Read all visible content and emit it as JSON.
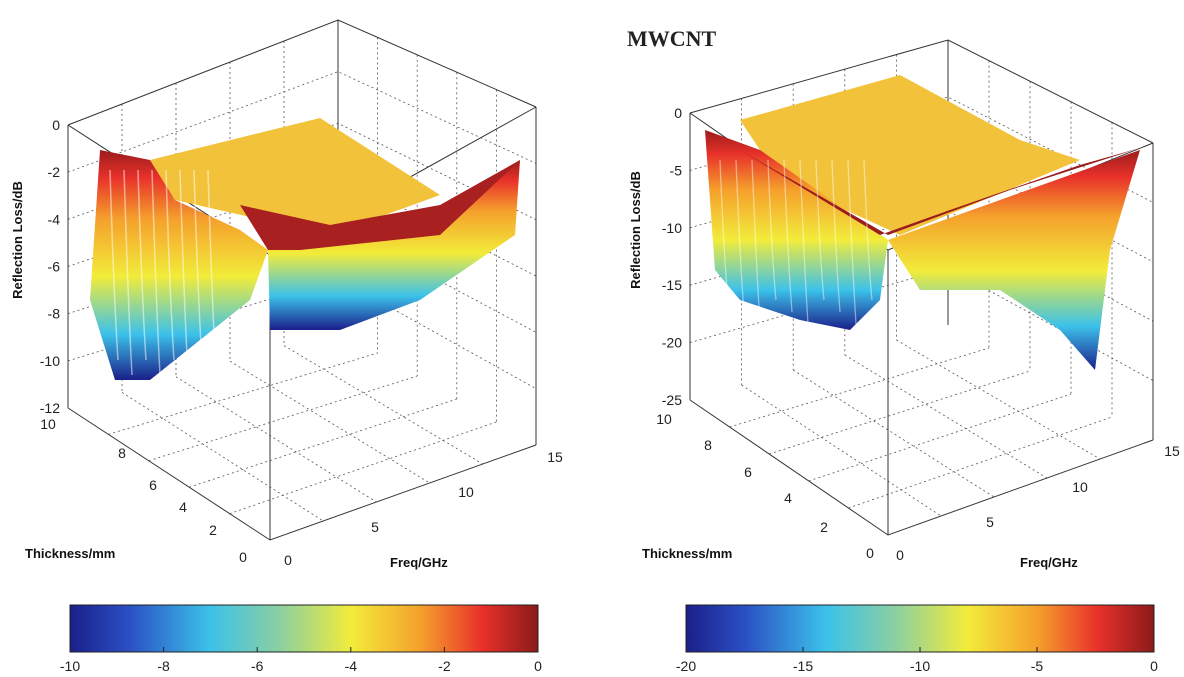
{
  "figure": {
    "right_panel_title": "MWCNT"
  },
  "chart_data": [
    {
      "type": "surface",
      "title": "",
      "zlabel": "Reflection Loss/dB",
      "xlabel": "Thickness/mm",
      "ylabel": "Freq/GHz",
      "zlim": [
        -12,
        0
      ],
      "z_ticks": [
        "0",
        "-2",
        "-4",
        "-6",
        "-8",
        "-10",
        "-12"
      ],
      "thickness_ticks": [
        "10",
        "8",
        "6",
        "4",
        "2",
        "0"
      ],
      "freq_ticks": [
        "0",
        "5",
        "10",
        "15"
      ],
      "colorbar": {
        "min": -10,
        "max": 0,
        "ticks": [
          "-10",
          "-8",
          "-6",
          "-4",
          "-2",
          "0"
        ]
      },
      "grid": true
    },
    {
      "type": "surface",
      "title": "MWCNT",
      "zlabel": "Reflection Loss/dB",
      "xlabel": "Thickness/mm",
      "ylabel": "Freq/GHz",
      "zlim": [
        -25,
        0
      ],
      "z_ticks": [
        "0",
        "-5",
        "-10",
        "-15",
        "-20",
        "-25"
      ],
      "thickness_ticks": [
        "10",
        "8",
        "6",
        "4",
        "2",
        "0"
      ],
      "freq_ticks": [
        "0",
        "5",
        "10",
        "15"
      ],
      "colorbar": {
        "min": -20,
        "max": 0,
        "ticks": [
          "-20",
          "-15",
          "-10",
          "-5",
          "0"
        ]
      },
      "grid": true
    }
  ]
}
